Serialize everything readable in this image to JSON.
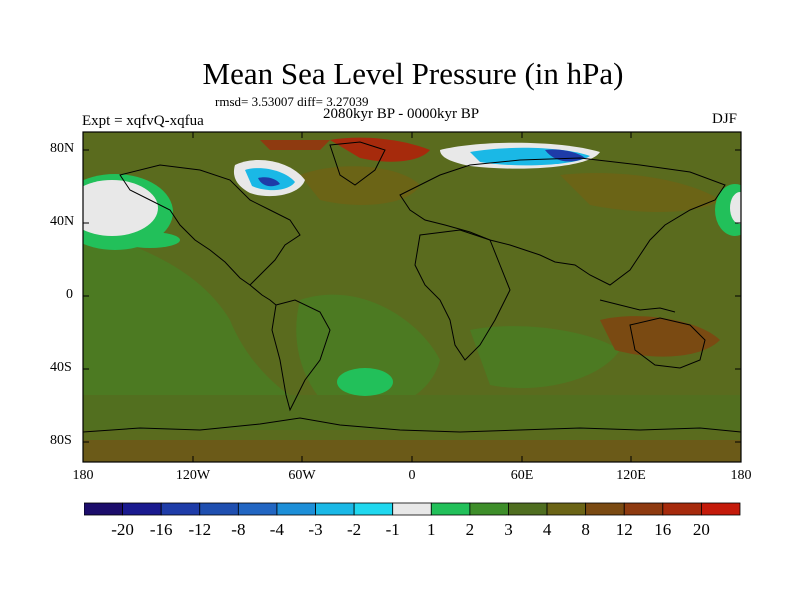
{
  "title": "Mean Sea Level Pressure (in hPa)",
  "stats": "rmsd= 3.53007 diff= 3.27039",
  "period": "2080kyr BP - 0000kyr BP",
  "experiment": "Expt = xqfvQ-xqfua",
  "season": "DJF",
  "lat_labels": [
    "80N",
    "40N",
    "0",
    "40S",
    "80S"
  ],
  "lon_labels": [
    "180",
    "120W",
    "60W",
    "0",
    "60E",
    "120E",
    "180"
  ],
  "colorbar": {
    "labels": [
      "-20",
      "-16",
      "-12",
      "-8",
      "-4",
      "-3",
      "-2",
      "-1",
      "1",
      "2",
      "3",
      "4",
      "8",
      "12",
      "16",
      "20"
    ],
    "colors": [
      "#1c0d6b",
      "#1a1a8f",
      "#1e3ca8",
      "#1f4fb0",
      "#2266c2",
      "#1d8fd8",
      "#1ab8e6",
      "#20d8ef",
      "#e8e8e8",
      "#22c05a",
      "#3e8e2a",
      "#4f6e20",
      "#6b6416",
      "#7a4a12",
      "#8e3a10",
      "#a62a0c",
      "#c41a0a"
    ]
  },
  "colors": {
    "background_field": "#5a6b1e",
    "ocean_green": "#3e8e2a",
    "bright_green": "#22c05a",
    "ice_white": "#e8e8e8",
    "cyan": "#20d8ef",
    "dark_blue": "#1e3ca8",
    "red": "#a62a0c",
    "brown": "#7a4a12"
  }
}
